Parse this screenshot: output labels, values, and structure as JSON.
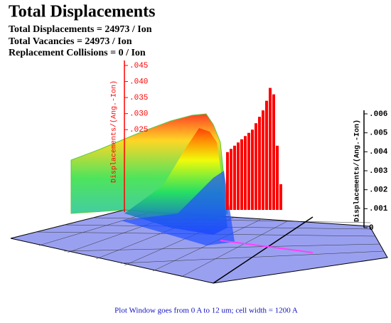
{
  "chart_data": {
    "type": "surface3d",
    "title": "Total Displacements",
    "annotations": [
      "Total Displacements = 24973 / Ion",
      "Total Vacancies = 24973 / Ion",
      "Replacement Collisions = 0 / Ion"
    ],
    "ylabel": "Displacements/(Ang.-Ion)",
    "y2label": "Displacements/(Ang.-Ion)",
    "footer": "Plot Window goes from 0 A to 12 um;  cell width = 1200 A",
    "ylim": [
      0,
      0.045
    ],
    "yticks": [
      {
        "value": 0.045,
        "label": ".045"
      },
      {
        "value": 0.04,
        "label": ".040"
      },
      {
        "value": 0.035,
        "label": ".035"
      },
      {
        "value": 0.03,
        "label": ".030"
      },
      {
        "value": 0.025,
        "label": ".025"
      }
    ],
    "y2lim": [
      0,
      0.006
    ],
    "y2ticks": [
      0,
      {
        "value": 0.001,
        "label": ".001"
      },
      {
        "value": 0.002,
        "label": ".002"
      },
      {
        "value": 0.003,
        "label": ".003"
      },
      {
        "value": 0.004,
        "label": ".004"
      },
      {
        "value": 0.005,
        "label": ".005"
      },
      {
        "value": 0.006,
        "label": ".006"
      }
    ],
    "series": [
      {
        "color": "#ff0000",
        "values": [
          0.018,
          0.019,
          0.02,
          0.021,
          0.022,
          0.023,
          0.024,
          0.025,
          0.027,
          0.029,
          0.031,
          0.034,
          0.038,
          0.036,
          0.02,
          0.008
        ]
      }
    ]
  }
}
